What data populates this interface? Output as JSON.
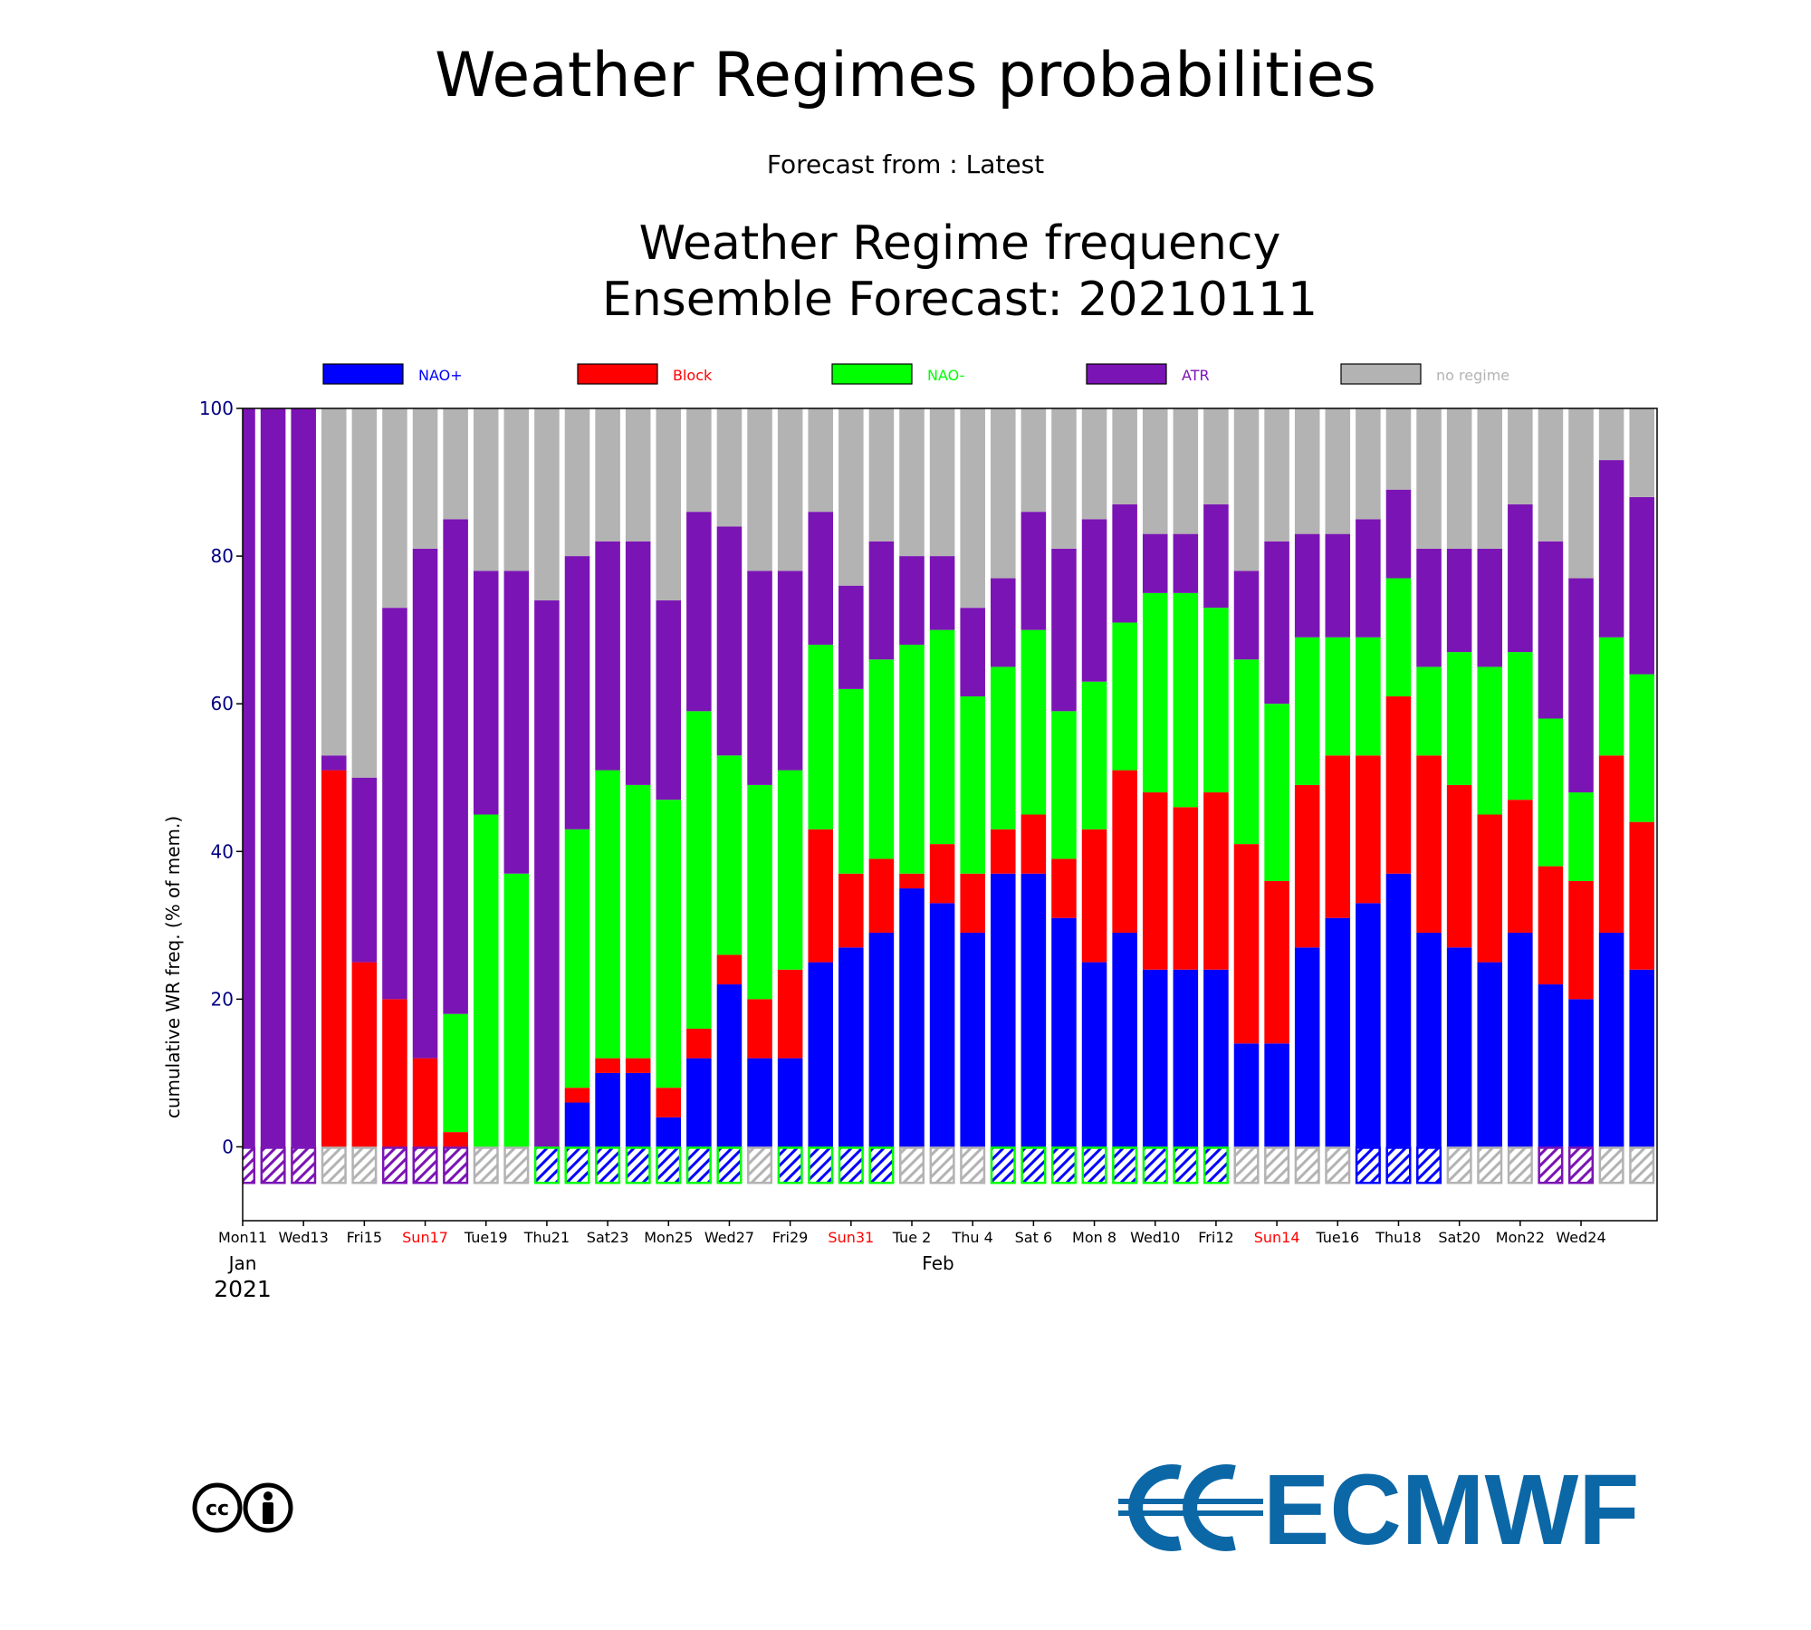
{
  "page": {
    "title": "Weather Regimes probabilities",
    "forecast_from": "Forecast from : Latest"
  },
  "branding": {
    "logo_text": "ECMWF",
    "logo_color": "#0c67a6"
  },
  "chart_data": {
    "type": "bar",
    "stacked": true,
    "title_lines": [
      "Weather Regime frequency",
      "Ensemble Forecast: 20210111"
    ],
    "ylabel": "cumulative WR freq. (% of mem.)",
    "xlabel": "",
    "ylim": [
      -10,
      100
    ],
    "yticks": [
      0,
      20,
      40,
      60,
      80,
      100
    ],
    "x_month_labels": [
      "Jan",
      "Feb"
    ],
    "x_year_label": "2021",
    "weekend_color": "#ff0000",
    "tick_labels": [
      {
        "label": "Mon11",
        "weekend": false
      },
      {
        "label": "Wed13",
        "weekend": false
      },
      {
        "label": "Fri15",
        "weekend": false
      },
      {
        "label": "Sun17",
        "weekend": true
      },
      {
        "label": "Tue19",
        "weekend": false
      },
      {
        "label": "Thu21",
        "weekend": false
      },
      {
        "label": "Sat23",
        "weekend": false
      },
      {
        "label": "Mon25",
        "weekend": false
      },
      {
        "label": "Wed27",
        "weekend": false
      },
      {
        "label": "Fri29",
        "weekend": false
      },
      {
        "label": "Sun31",
        "weekend": true
      },
      {
        "label": "Tue 2",
        "weekend": false
      },
      {
        "label": "Thu 4",
        "weekend": false
      },
      {
        "label": "Sat 6",
        "weekend": false
      },
      {
        "label": "Mon 8",
        "weekend": false
      },
      {
        "label": "Wed10",
        "weekend": false
      },
      {
        "label": "Fri12",
        "weekend": false
      },
      {
        "label": "Sun14",
        "weekend": true
      },
      {
        "label": "Tue16",
        "weekend": false
      },
      {
        "label": "Thu18",
        "weekend": false
      },
      {
        "label": "Sat20",
        "weekend": false
      },
      {
        "label": "Mon22",
        "weekend": false
      },
      {
        "label": "Wed24",
        "weekend": false
      }
    ],
    "legend": [
      {
        "name": "NAO+",
        "color": "#0000ff",
        "text_color": "#0000ff"
      },
      {
        "name": "Block",
        "color": "#ff0000",
        "text_color": "#ff0000"
      },
      {
        "name": "NAO-",
        "color": "#00ff00",
        "text_color": "#00ff00"
      },
      {
        "name": "ATR",
        "color": "#7b14b4",
        "text_color": "#7b14b4"
      },
      {
        "name": "no regime",
        "color": "#b3b3b3",
        "text_color": "#b3b3b3"
      }
    ],
    "series": [
      {
        "name": "NAO+",
        "values": [
          0,
          0,
          0,
          0,
          0,
          0,
          0,
          0,
          0,
          0,
          0,
          6,
          10,
          10,
          4,
          12,
          22,
          12,
          12,
          25,
          27,
          29,
          35,
          33,
          29,
          37,
          37,
          31,
          25,
          29,
          24,
          24,
          24,
          14,
          14,
          27,
          31,
          33,
          37,
          29,
          27,
          25,
          29,
          22,
          20,
          29,
          24
        ]
      },
      {
        "name": "Block",
        "values": [
          0,
          0,
          0,
          51,
          25,
          20,
          12,
          2,
          0,
          0,
          0,
          2,
          2,
          2,
          4,
          4,
          4,
          8,
          12,
          18,
          10,
          10,
          2,
          8,
          8,
          6,
          8,
          8,
          18,
          22,
          24,
          22,
          24,
          27,
          22,
          22,
          22,
          20,
          24,
          24,
          22,
          20,
          18,
          16,
          16,
          24,
          20
        ]
      },
      {
        "name": "NAO-",
        "values": [
          0,
          0,
          0,
          0,
          0,
          0,
          0,
          16,
          45,
          37,
          0,
          35,
          39,
          37,
          39,
          43,
          27,
          29,
          27,
          25,
          25,
          27,
          31,
          29,
          24,
          22,
          25,
          20,
          20,
          20,
          27,
          29,
          25,
          25,
          24,
          20,
          16,
          16,
          16,
          12,
          18,
          20,
          20,
          20,
          12,
          16,
          20
        ]
      },
      {
        "name": "ATR",
        "values": [
          100,
          100,
          100,
          2,
          25,
          53,
          69,
          67,
          33,
          41,
          74,
          37,
          31,
          33,
          27,
          27,
          31,
          29,
          27,
          18,
          14,
          16,
          12,
          10,
          12,
          12,
          16,
          22,
          22,
          16,
          8,
          8,
          14,
          12,
          22,
          14,
          14,
          16,
          12,
          16,
          14,
          16,
          20,
          24,
          29,
          24,
          24
        ]
      },
      {
        "name": "no regime",
        "values": [
          0,
          0,
          0,
          47,
          50,
          27,
          19,
          15,
          22,
          22,
          26,
          20,
          18,
          18,
          26,
          14,
          16,
          22,
          22,
          14,
          24,
          18,
          20,
          20,
          27,
          23,
          14,
          19,
          15,
          13,
          17,
          17,
          13,
          22,
          18,
          17,
          17,
          15,
          11,
          19,
          19,
          19,
          13,
          18,
          23,
          7,
          12
        ]
      }
    ],
    "dominant_regime_strip": [
      "ATR",
      "ATR",
      "ATR",
      "no regime",
      "no regime",
      "ATR",
      "ATR",
      "ATR",
      "no regime",
      "no regime",
      "NAO-",
      "NAO-",
      "NAO-",
      "NAO-",
      "NAO-",
      "NAO-",
      "NAO-",
      "no regime",
      "NAO-",
      "NAO-",
      "NAO-",
      "NAO-",
      "no regime",
      "no regime",
      "no regime",
      "NAO-",
      "NAO-",
      "NAO-",
      "NAO-",
      "NAO-",
      "NAO-",
      "NAO-",
      "NAO-",
      "no regime",
      "no regime",
      "no regime",
      "no regime",
      "NAO+",
      "NAO+",
      "NAO+",
      "no regime",
      "no regime",
      "no regime",
      "ATR",
      "ATR",
      "no regime",
      "no regime"
    ],
    "grid": false,
    "legend_placement": "top"
  }
}
